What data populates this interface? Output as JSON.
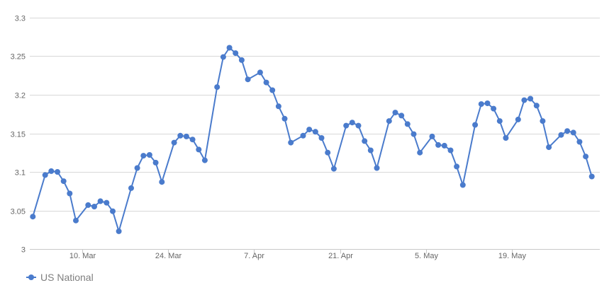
{
  "chart_data": {
    "type": "line",
    "title": "",
    "xlabel": "",
    "ylabel": "",
    "x_tick_labels": [
      {
        "label": "10. Mar",
        "x": 8
      },
      {
        "label": "24. Mar",
        "x": 22
      },
      {
        "label": "7. Apr",
        "x": 36
      },
      {
        "label": "21. Apr",
        "x": 50
      },
      {
        "label": "5. May",
        "x": 64
      },
      {
        "label": "19. May",
        "x": 78
      }
    ],
    "y_ticks": [
      3,
      3.05,
      3.1,
      3.15,
      3.2,
      3.25,
      3.3
    ],
    "y_tick_labels": [
      "3",
      "3.05",
      "3.1",
      "3.15",
      "3.2",
      "3.25",
      "3.3"
    ],
    "ylim": [
      3,
      3.3
    ],
    "xlim": [
      -0.5,
      92.3
    ],
    "grid": true,
    "legend_position": "bottom-left",
    "colors": {
      "series": "#4a7bcc",
      "grid": "#d8d8d8",
      "text": "#666666"
    },
    "series": [
      {
        "name": "US National",
        "x": [
          0,
          2,
          3,
          4,
          5,
          6,
          7,
          9,
          10,
          11,
          12,
          13,
          14,
          16,
          17,
          18,
          19,
          20,
          21,
          23,
          24,
          25,
          26,
          27,
          28,
          30,
          31,
          32,
          33,
          34,
          35,
          37,
          38,
          39,
          40,
          41,
          42,
          44,
          45,
          46,
          47,
          48,
          49,
          51,
          52,
          53,
          54,
          55,
          56,
          58,
          59,
          60,
          61,
          62,
          63,
          65,
          66,
          67,
          68,
          69,
          70,
          72,
          73,
          74,
          75,
          76,
          77,
          79,
          80,
          81,
          82,
          83,
          84,
          86,
          87,
          88,
          89,
          90,
          91
        ],
        "y": [
          3.042,
          3.096,
          3.101,
          3.1,
          3.088,
          3.072,
          3.037,
          3.057,
          3.055,
          3.062,
          3.06,
          3.049,
          3.023,
          3.079,
          3.105,
          3.121,
          3.122,
          3.112,
          3.087,
          3.138,
          3.147,
          3.146,
          3.142,
          3.129,
          3.115,
          3.21,
          3.249,
          3.261,
          3.254,
          3.245,
          3.22,
          3.229,
          3.216,
          3.206,
          3.185,
          3.169,
          3.138,
          3.147,
          3.155,
          3.152,
          3.144,
          3.125,
          3.104,
          3.16,
          3.164,
          3.16,
          3.14,
          3.128,
          3.105,
          3.166,
          3.177,
          3.173,
          3.162,
          3.149,
          3.125,
          3.146,
          3.135,
          3.134,
          3.128,
          3.107,
          3.083,
          3.161,
          3.188,
          3.189,
          3.182,
          3.166,
          3.144,
          3.168,
          3.193,
          3.195,
          3.186,
          3.166,
          3.132,
          3.148,
          3.153,
          3.151,
          3.139,
          3.12,
          3.094
        ]
      }
    ]
  }
}
